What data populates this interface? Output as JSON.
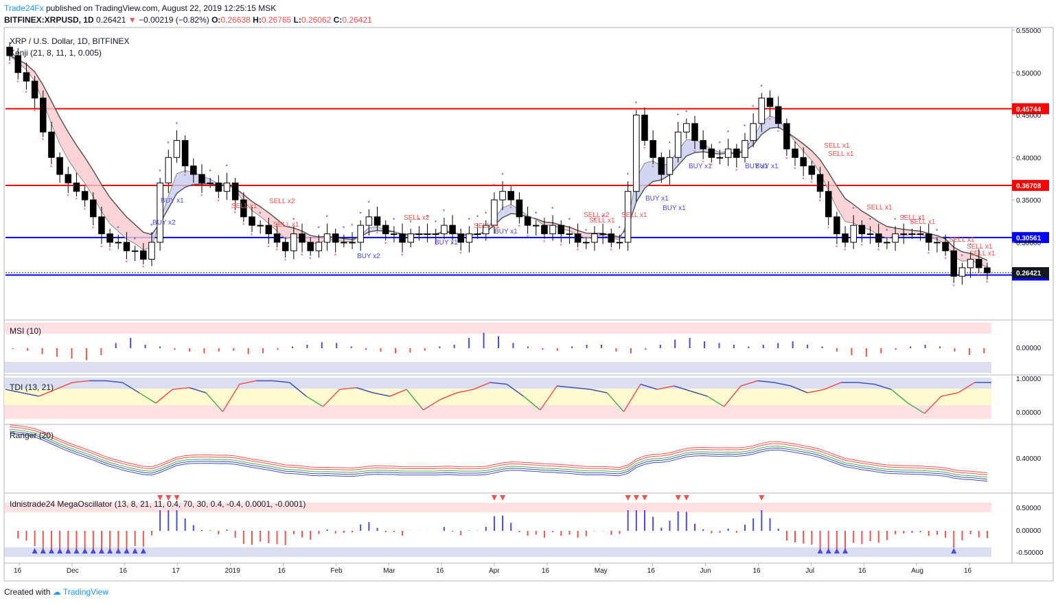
{
  "header": {
    "brand": "Trade24Fx",
    "published": "published on TradingView.com, August 22, 2019 12:25:15 MSK",
    "symbol": "BITFINEX:XRPUSD, 1D",
    "last": "0.26421",
    "arrow": "▼",
    "change": "−0.00219 (−0.82%)",
    "o_label": "O:",
    "o": "0.26638",
    "h_label": "H:",
    "h": "0.26765",
    "l_label": "L:",
    "l": "0.26062",
    "c_label": "C:",
    "c": "0.26421"
  },
  "footer": {
    "created": "Created with",
    "brand": "TradingView"
  },
  "chart_data": {
    "type": "candlestick",
    "title": "XRP / U.S. Dollar, 1D, BITFINEX",
    "indicator_label": "Kenji (21, 8, 11, 1, 0.005)",
    "price_axis": [
      "0.55000",
      "0.50000",
      "0.45000",
      "0.40000",
      "0.35000",
      "0.30000"
    ],
    "x_labels": [
      "16",
      "Dec",
      "16",
      "17",
      "2019",
      "16",
      "Feb",
      "Mar",
      "16",
      "Apr",
      "16",
      "May",
      "16",
      "Jun",
      "16",
      "Jul",
      "16",
      "Aug",
      "16"
    ],
    "ylim": [
      0.21,
      0.55
    ],
    "horizontal_levels": [
      {
        "value": 0.45744,
        "label": "0.45744",
        "color": "#ff0000"
      },
      {
        "value": 0.36708,
        "label": "0.36708",
        "color": "#ff0000"
      },
      {
        "value": 0.30561,
        "label": "0.30561",
        "color": "#0000ff"
      },
      {
        "value": 0.26141,
        "label": "0.26141",
        "color": "#0000ff"
      }
    ],
    "last_price": {
      "value": 0.26421,
      "label": "0.26421",
      "color": "#131722"
    },
    "close_series": [
      0.52,
      0.5,
      0.49,
      0.47,
      0.43,
      0.4,
      0.38,
      0.37,
      0.36,
      0.35,
      0.33,
      0.31,
      0.3,
      0.3,
      0.29,
      0.29,
      0.28,
      0.3,
      0.37,
      0.4,
      0.42,
      0.39,
      0.38,
      0.37,
      0.37,
      0.36,
      0.37,
      0.35,
      0.33,
      0.32,
      0.32,
      0.31,
      0.3,
      0.29,
      0.31,
      0.3,
      0.29,
      0.3,
      0.31,
      0.3,
      0.3,
      0.3,
      0.32,
      0.33,
      0.32,
      0.31,
      0.31,
      0.3,
      0.31,
      0.31,
      0.31,
      0.31,
      0.32,
      0.31,
      0.3,
      0.31,
      0.31,
      0.32,
      0.35,
      0.36,
      0.35,
      0.33,
      0.32,
      0.32,
      0.31,
      0.32,
      0.31,
      0.31,
      0.3,
      0.3,
      0.31,
      0.31,
      0.3,
      0.3,
      0.36,
      0.45,
      0.42,
      0.4,
      0.38,
      0.4,
      0.43,
      0.44,
      0.42,
      0.41,
      0.4,
      0.4,
      0.41,
      0.4,
      0.42,
      0.44,
      0.47,
      0.46,
      0.44,
      0.41,
      0.4,
      0.39,
      0.38,
      0.36,
      0.33,
      0.31,
      0.3,
      0.32,
      0.31,
      0.31,
      0.3,
      0.3,
      0.31,
      0.31,
      0.31,
      0.31,
      0.3,
      0.3,
      0.29,
      0.26,
      0.27,
      0.28,
      0.27,
      0.264
    ],
    "signals": [
      {
        "text": "BUY x1",
        "type": "buy"
      },
      {
        "text": "BUY x2",
        "type": "buy"
      },
      {
        "text": "SELL x1",
        "type": "sell"
      },
      {
        "text": "SELL x2",
        "type": "sell"
      },
      {
        "text": "SELL x1",
        "type": "sell"
      },
      {
        "text": "BUY x2",
        "type": "buy"
      },
      {
        "text": "SELL x2",
        "type": "sell"
      },
      {
        "text": "BUY x1",
        "type": "buy"
      },
      {
        "text": "SELL x1",
        "type": "sell"
      },
      {
        "text": "BUY x1",
        "type": "buy"
      },
      {
        "text": "SELL x2",
        "type": "sell"
      },
      {
        "text": "SELL x1",
        "type": "sell"
      },
      {
        "text": "SELL x1",
        "type": "sell"
      },
      {
        "text": "BUY x1",
        "type": "buy"
      },
      {
        "text": "BUY x1",
        "type": "buy"
      },
      {
        "text": "BUY x1",
        "type": "buy"
      },
      {
        "text": "BUY x1",
        "type": "buy"
      },
      {
        "text": "BUY x1",
        "type": "buy"
      },
      {
        "text": "SELL x1",
        "type": "sell"
      },
      {
        "text": "SELL x1",
        "type": "sell"
      },
      {
        "text": "SELL x1",
        "type": "sell"
      },
      {
        "text": "SELL x1",
        "type": "sell"
      },
      {
        "text": "SELL x1",
        "type": "sell"
      },
      {
        "text": "SELL x1",
        "type": "sell"
      },
      {
        "text": "SELL x1",
        "type": "sell"
      },
      {
        "text": "SELL x1",
        "type": "sell"
      }
    ],
    "panels": [
      {
        "name": "MSI (10)",
        "axis": [
          "0.00000"
        ],
        "bars": [
          -0.05,
          -0.15,
          -0.35,
          -0.5,
          -0.6,
          -0.7,
          -0.4,
          0.3,
          0.6,
          0.2,
          0.1,
          -0.1,
          -0.2,
          -0.3,
          -0.2,
          -0.15,
          -0.35,
          -0.3,
          -0.1,
          0.1,
          0.2,
          0.35,
          0.3,
          0.1,
          -0.1,
          -0.2,
          -0.3,
          -0.25,
          -0.15,
          0.1,
          0.2,
          0.6,
          0.9,
          0.7,
          0.3,
          0.1,
          -0.1,
          -0.15,
          0.1,
          0.2,
          0.2,
          -0.2,
          -0.3,
          -0.1,
          0.2,
          0.5,
          0.6,
          0.4,
          0.3,
          0.2,
          0.1,
          0.2,
          0.3,
          0.4,
          0.2,
          0.1,
          -0.2,
          -0.4,
          -0.5,
          -0.3,
          -0.1,
          0.1,
          0.2,
          0.1,
          -0.2,
          -0.4,
          -0.3
        ]
      },
      {
        "name": "TDI (13, 21)",
        "axis": [
          "1.00000",
          "0.00000"
        ],
        "line": [
          0.7,
          0.6,
          0.5,
          0.7,
          0.9,
          0.95,
          0.95,
          0.9,
          0.6,
          0.3,
          0.7,
          0.75,
          0.6,
          0.05,
          0.85,
          0.95,
          0.95,
          0.9,
          0.5,
          0.2,
          0.7,
          0.75,
          0.6,
          0.5,
          0.7,
          0.1,
          0.4,
          0.6,
          0.7,
          0.9,
          0.85,
          0.5,
          0.1,
          0.8,
          0.75,
          0.7,
          0.6,
          0.05,
          0.85,
          0.7,
          0.8,
          0.65,
          0.5,
          0.2,
          0.8,
          0.95,
          0.9,
          0.8,
          0.6,
          0.7,
          0.9,
          0.9,
          0.85,
          0.7,
          0.3,
          0.0,
          0.5,
          0.6,
          0.9,
          0.9
        ]
      },
      {
        "name": "Ranger (20)",
        "axis": [
          "0.40000"
        ]
      },
      {
        "name": "Idnistrade24 MegaOscillator (13, 8, 21, 11, 0.4, 70, 30, 0.4, -0.4, 0.0001, -0.0001)",
        "axis": [
          "0.50000",
          "0.00000",
          "-0.50000"
        ]
      }
    ]
  },
  "colors": {
    "up": "#ffffff",
    "down": "#000000",
    "buy": "#4a4adf",
    "sell": "#ef5350",
    "level_red": "#ff0000",
    "level_blue": "#0000ff",
    "tdi_band_top": "#c5cae9",
    "tdi_band_mid": "#fff9c4",
    "tdi_band_bot": "#ffcdd2"
  }
}
